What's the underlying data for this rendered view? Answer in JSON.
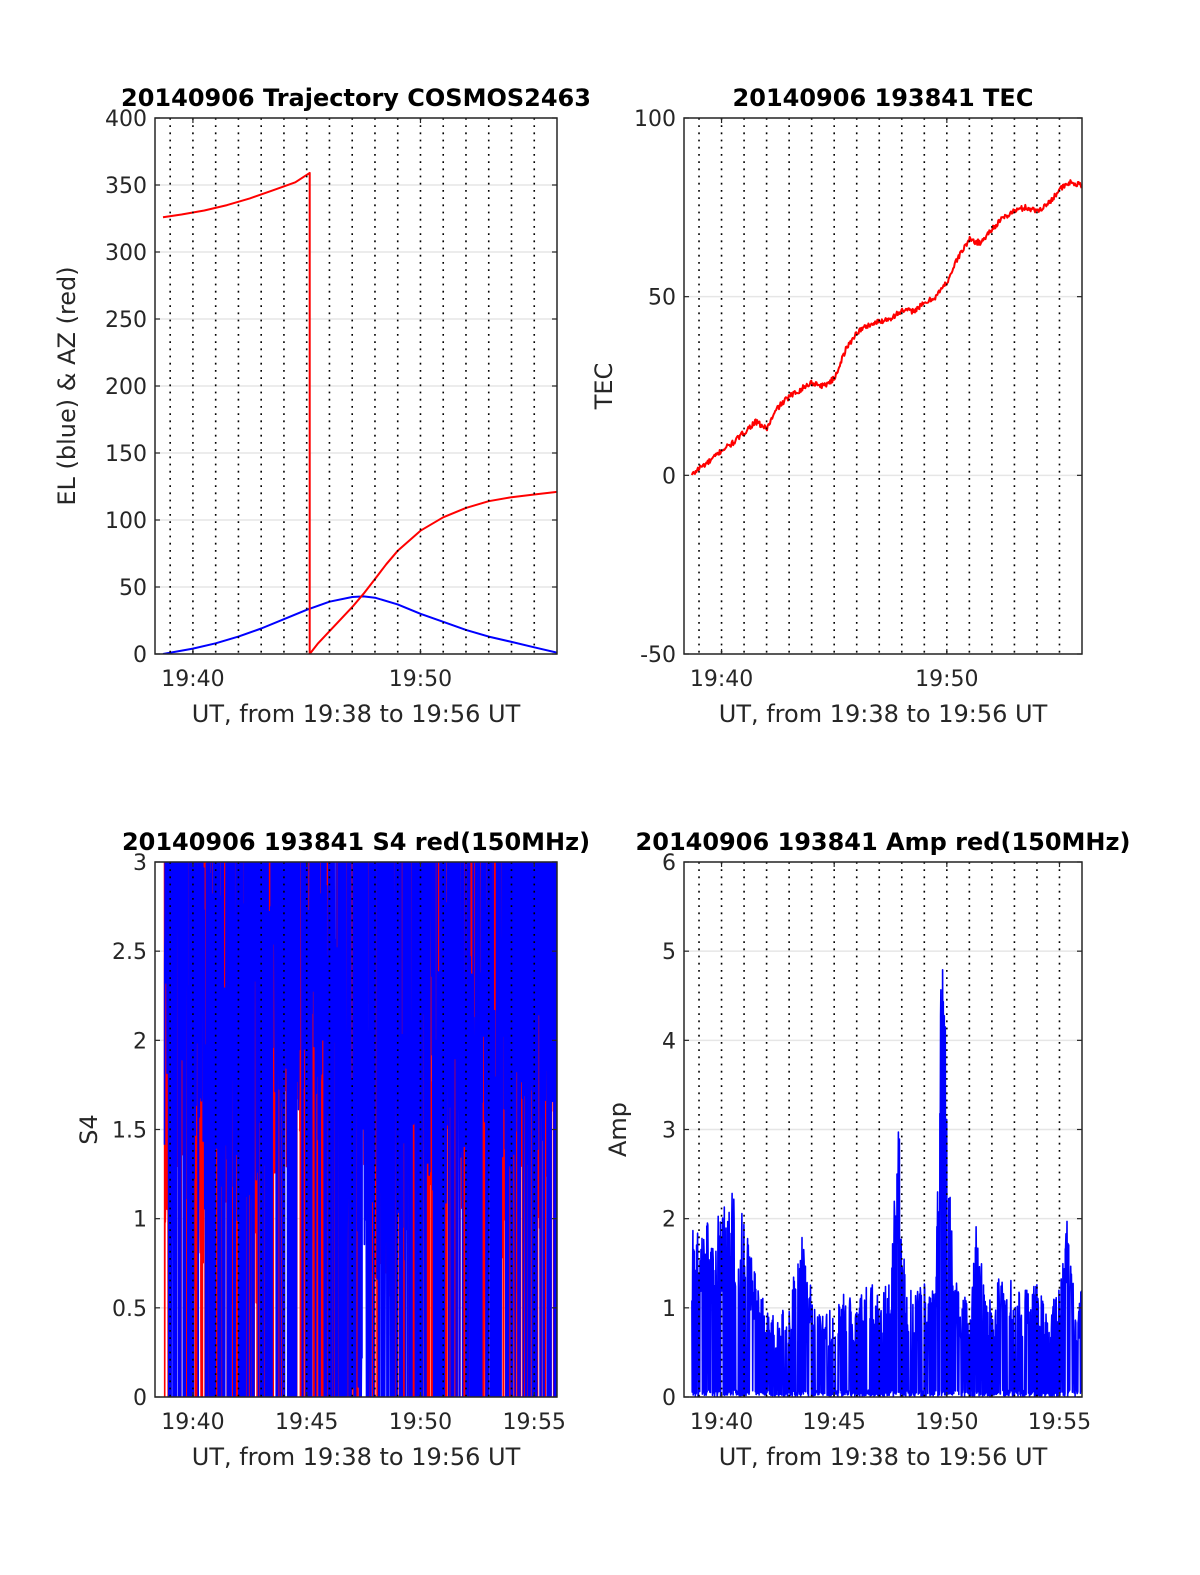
{
  "figure": {
    "colors": {
      "el": "#0000ff",
      "az": "#ff0000",
      "red": "#ff0000",
      "blue": "#0000ff",
      "grid": "#e6e6e6",
      "vline": "#000000"
    },
    "minute_ticks": [
      "19:39",
      "19:40",
      "19:41",
      "19:42",
      "19:43",
      "19:44",
      "19:45",
      "19:46",
      "19:47",
      "19:48",
      "19:49",
      "19:50",
      "19:51",
      "19:52",
      "19:53",
      "19:54",
      "19:55",
      "19:56"
    ]
  },
  "chart_data": [
    {
      "id": "trajectory",
      "type": "line",
      "title": "20140906 Trajectory COSMOS2463",
      "xlabel": "UT, from 19:38 to 19:56 UT",
      "ylabel": "EL (blue) & AZ (red)",
      "xlim": [
        "19:38:20",
        "19:56:00"
      ],
      "ylim": [
        0,
        400
      ],
      "yticks": [
        0,
        50,
        100,
        150,
        200,
        250,
        300,
        350,
        400
      ],
      "xticks": [
        "19:40",
        "19:50"
      ],
      "minor_vlines": "every minute, dotted",
      "grid": true,
      "series": [
        {
          "label": "EL",
          "color": "#0000ff",
          "x": [
            "19:38:41",
            "19:40:00",
            "19:41:00",
            "19:42:00",
            "19:43:00",
            "19:44:00",
            "19:45:00",
            "19:46:00",
            "19:47:00",
            "19:47:30",
            "19:48:00",
            "19:49:00",
            "19:50:00",
            "19:51:00",
            "19:52:00",
            "19:53:00",
            "19:54:00",
            "19:55:00",
            "19:56:00"
          ],
          "y": [
            0,
            4,
            8,
            13,
            19,
            26,
            33,
            39,
            42.5,
            43,
            42,
            37,
            30,
            24,
            18,
            13,
            9,
            5,
            1
          ]
        },
        {
          "label": "AZ",
          "color": "#ff0000",
          "x": [
            "19:38:41",
            "19:39:30",
            "19:40:30",
            "19:41:30",
            "19:42:30",
            "19:43:30",
            "19:44:30",
            "19:45:08",
            "19:45:08",
            "19:45:30",
            "19:46:00",
            "19:46:30",
            "19:47:00",
            "19:47:30",
            "19:48:00",
            "19:48:30",
            "19:49:00",
            "19:50:00",
            "19:51:00",
            "19:52:00",
            "19:53:00",
            "19:54:00",
            "19:55:00",
            "19:56:00"
          ],
          "y": [
            326,
            328,
            331,
            335,
            340,
            346,
            352,
            359,
            0,
            8,
            17,
            26,
            35,
            45,
            56,
            67,
            77,
            92,
            102,
            109,
            114,
            117,
            119,
            121
          ]
        }
      ]
    },
    {
      "id": "tec",
      "type": "line",
      "title": "20140906 193841 TEC",
      "xlabel": "UT, from 19:38 to 19:56 UT",
      "ylabel": "TEC",
      "xlim": [
        "19:38:20",
        "19:56:00"
      ],
      "ylim": [
        -50,
        100
      ],
      "yticks": [
        -50,
        0,
        50,
        100
      ],
      "xticks": [
        "19:40",
        "19:50"
      ],
      "minor_vlines": "every minute, dotted",
      "grid": true,
      "series": [
        {
          "color": "#ff0000",
          "x": [
            "19:38:41",
            "19:39:00",
            "19:39:30",
            "19:40:00",
            "19:40:30",
            "19:41:00",
            "19:41:30",
            "19:42:00",
            "19:42:30",
            "19:43:00",
            "19:43:30",
            "19:44:00",
            "19:44:30",
            "19:45:00",
            "19:45:30",
            "19:46:00",
            "19:46:30",
            "19:47:00",
            "19:47:30",
            "19:48:00",
            "19:48:30",
            "19:49:00",
            "19:49:30",
            "19:50:00",
            "19:50:30",
            "19:51:00",
            "19:51:30",
            "19:52:00",
            "19:52:30",
            "19:53:00",
            "19:53:30",
            "19:54:00",
            "19:54:30",
            "19:55:00",
            "19:55:30",
            "19:56:00"
          ],
          "y": [
            0,
            2,
            4,
            7,
            9,
            12,
            15,
            13,
            19,
            22,
            24,
            26,
            25,
            27,
            35,
            40,
            42,
            43,
            44,
            46,
            46,
            48,
            50,
            54,
            61,
            66,
            65,
            69,
            72,
            74,
            75,
            74,
            76,
            80,
            82,
            81
          ]
        }
      ]
    },
    {
      "id": "s4",
      "type": "line",
      "title": "20140906 193841 S4 red(150MHz)",
      "xlabel": "UT, from 19:38 to 19:56 UT",
      "ylabel": "S4",
      "xlim": [
        "19:38:20",
        "19:56:00"
      ],
      "ylim": [
        0,
        3
      ],
      "yticks": [
        0,
        0.5,
        1,
        1.5,
        2,
        2.5,
        3
      ],
      "xticks": [
        "19:40",
        "19:45",
        "19:50",
        "19:55"
      ],
      "minor_vlines": "every minute, dotted",
      "grid": true,
      "note_series": "dense noisy traces saturating the axis",
      "series": [
        {
          "color": "#ff0000",
          "x": [
            "19:39",
            "19:40",
            "19:41",
            "19:42",
            "19:43",
            "19:44",
            "19:45",
            "19:46",
            "19:47",
            "19:48",
            "19:49",
            "19:50",
            "19:51",
            "19:52",
            "19:53",
            "19:54",
            "19:55",
            "19:56"
          ],
          "y": [
            1.7,
            1.4,
            1.3,
            1.5,
            1.5,
            2.0,
            2.4,
            2.5,
            2.1,
            1.6,
            1.4,
            2.2,
            1.9,
            1.7,
            1.8,
            1.5,
            1.5,
            2.7
          ]
        },
        {
          "color": "#0000ff",
          "x": [
            "19:39",
            "19:40",
            "19:41",
            "19:42",
            "19:43",
            "19:44",
            "19:45",
            "19:46",
            "19:47",
            "19:48",
            "19:49",
            "19:50",
            "19:51",
            "19:52",
            "19:53",
            "19:54",
            "19:55",
            "19:56"
          ],
          "y": [
            2.3,
            2.0,
            2.0,
            1.9,
            2.2,
            2.3,
            2.6,
            2.2,
            1.0,
            1.2,
            1.5,
            2.3,
            2.0,
            2.3,
            2.1,
            2.2,
            2.3,
            2.2
          ]
        }
      ]
    },
    {
      "id": "amp",
      "type": "line",
      "title": "20140906 193841 Amp red(150MHz)",
      "xlabel": "UT, from 19:38 to 19:56 UT",
      "ylabel": "Amp",
      "xlim": [
        "19:38:20",
        "19:56:00"
      ],
      "ylim": [
        0,
        6
      ],
      "yticks": [
        0,
        1,
        2,
        3,
        4,
        5,
        6
      ],
      "xticks": [
        "19:40",
        "19:45",
        "19:50",
        "19:55"
      ],
      "minor_vlines": "every minute, dotted",
      "grid": true,
      "series": [
        {
          "color": "#0000ff",
          "x": [
            "19:38:41",
            "19:39:00",
            "19:39:30",
            "19:40:00",
            "19:40:30",
            "19:41:00",
            "19:41:30",
            "19:42:00",
            "19:42:30",
            "19:43:00",
            "19:43:30",
            "19:44:00",
            "19:44:30",
            "19:45:00",
            "19:45:30",
            "19:46:00",
            "19:46:30",
            "19:47:00",
            "19:47:30",
            "19:47:50",
            "19:48:10",
            "19:48:30",
            "19:49:00",
            "19:49:30",
            "19:49:45",
            "19:50:00",
            "19:50:15",
            "19:50:30",
            "19:51:00",
            "19:51:20",
            "19:51:40",
            "19:52:00",
            "19:52:30",
            "19:53:00",
            "19:53:30",
            "19:54:00",
            "19:54:30",
            "19:55:00",
            "19:55:20",
            "19:55:40",
            "19:56:00"
          ],
          "y": [
            1.9,
            1.9,
            2.0,
            2.1,
            2.3,
            2.0,
            1.4,
            1.0,
            0.9,
            1.1,
            1.9,
            1.2,
            1.0,
            1.0,
            1.2,
            1.0,
            1.4,
            1.2,
            1.3,
            3.3,
            1.2,
            1.2,
            1.3,
            1.2,
            4.9,
            4.8,
            1.5,
            1.2,
            1.1,
            2.1,
            1.2,
            1.1,
            1.5,
            1.3,
            1.2,
            1.3,
            1.2,
            1.2,
            2.1,
            1.1,
            1.2
          ]
        }
      ]
    }
  ]
}
